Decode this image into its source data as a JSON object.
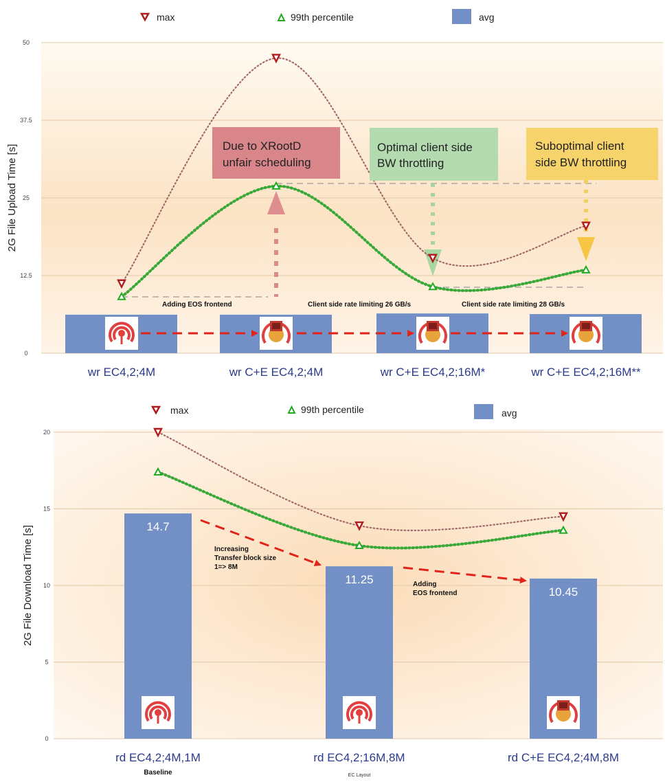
{
  "chart_data": [
    {
      "type": "line",
      "ylabel": "2G File Upload Time [s]",
      "yticks": [
        "0",
        "12.5",
        "25",
        "37.5",
        "50"
      ],
      "ylim": [
        0,
        50
      ],
      "categories": [
        "wr EC4,2;4M",
        "wr C+E EC4,2;4M",
        "wr C+E EC4,2;16M*",
        "wr C+E EC4,2;16M**"
      ],
      "series": [
        {
          "name": "max",
          "values": [
            11.2,
            47.5,
            15.3,
            20.5
          ],
          "color": "#b01c1c"
        },
        {
          "name": "99th percentile",
          "values": [
            9.1,
            26.9,
            10.7,
            13.4
          ],
          "color": "#22aa22"
        },
        {
          "name": "avg",
          "values": [
            6.2,
            6.2,
            6.4,
            6.3
          ],
          "color": "#7290c5"
        }
      ],
      "legend": [
        "max",
        "99th percentile",
        "avg"
      ],
      "callouts": [
        {
          "line1": "Due to XRootD",
          "line2": "unfair scheduling"
        },
        {
          "line1": "Optimal client side",
          "line2": "BW throttling"
        },
        {
          "line1": "Suboptimal  client",
          "line2": "side BW throttling"
        }
      ],
      "annotations": [
        "Adding EOS frontend",
        "Client side rate limiting 26 GB/s",
        "Client side rate limiting  28 GB/s"
      ],
      "icons": [
        "ceph-logo-icon",
        "eos-ceph-logo-icon",
        "eos-ceph-logo-icon",
        "eos-ceph-logo-icon"
      ]
    },
    {
      "type": "bar",
      "ylabel": "2G File Download Time [s]",
      "yticks": [
        "0",
        "5",
        "10",
        "15",
        "20"
      ],
      "ylim": [
        0,
        20
      ],
      "categories": [
        "rd EC4,2;4M,1M",
        "rd EC4,2;16M,8M",
        "rd C+E EC4,2;4M,8M"
      ],
      "series": [
        {
          "name": "avg",
          "values": [
            14.7,
            11.25,
            10.45
          ],
          "color": "#7290c5"
        },
        {
          "name": "max",
          "values": [
            20.0,
            13.9,
            14.5
          ],
          "color": "#b01c1c"
        },
        {
          "name": "99th percentile",
          "values": [
            17.4,
            12.6,
            13.6
          ],
          "color": "#22aa22"
        }
      ],
      "bar_labels": [
        "14.7",
        "11.25",
        "10.45"
      ],
      "legend": [
        "max",
        "99th percentile",
        "avg"
      ],
      "annotations": [
        "Increasing",
        "Transfer block size",
        "1=> 8M",
        "Adding",
        "EOS frontend"
      ],
      "captions": [
        "Baseline",
        "EC Layout"
      ],
      "icons": [
        "ceph-logo-icon",
        "ceph-logo-icon",
        "eos-ceph-logo-icon"
      ]
    }
  ]
}
